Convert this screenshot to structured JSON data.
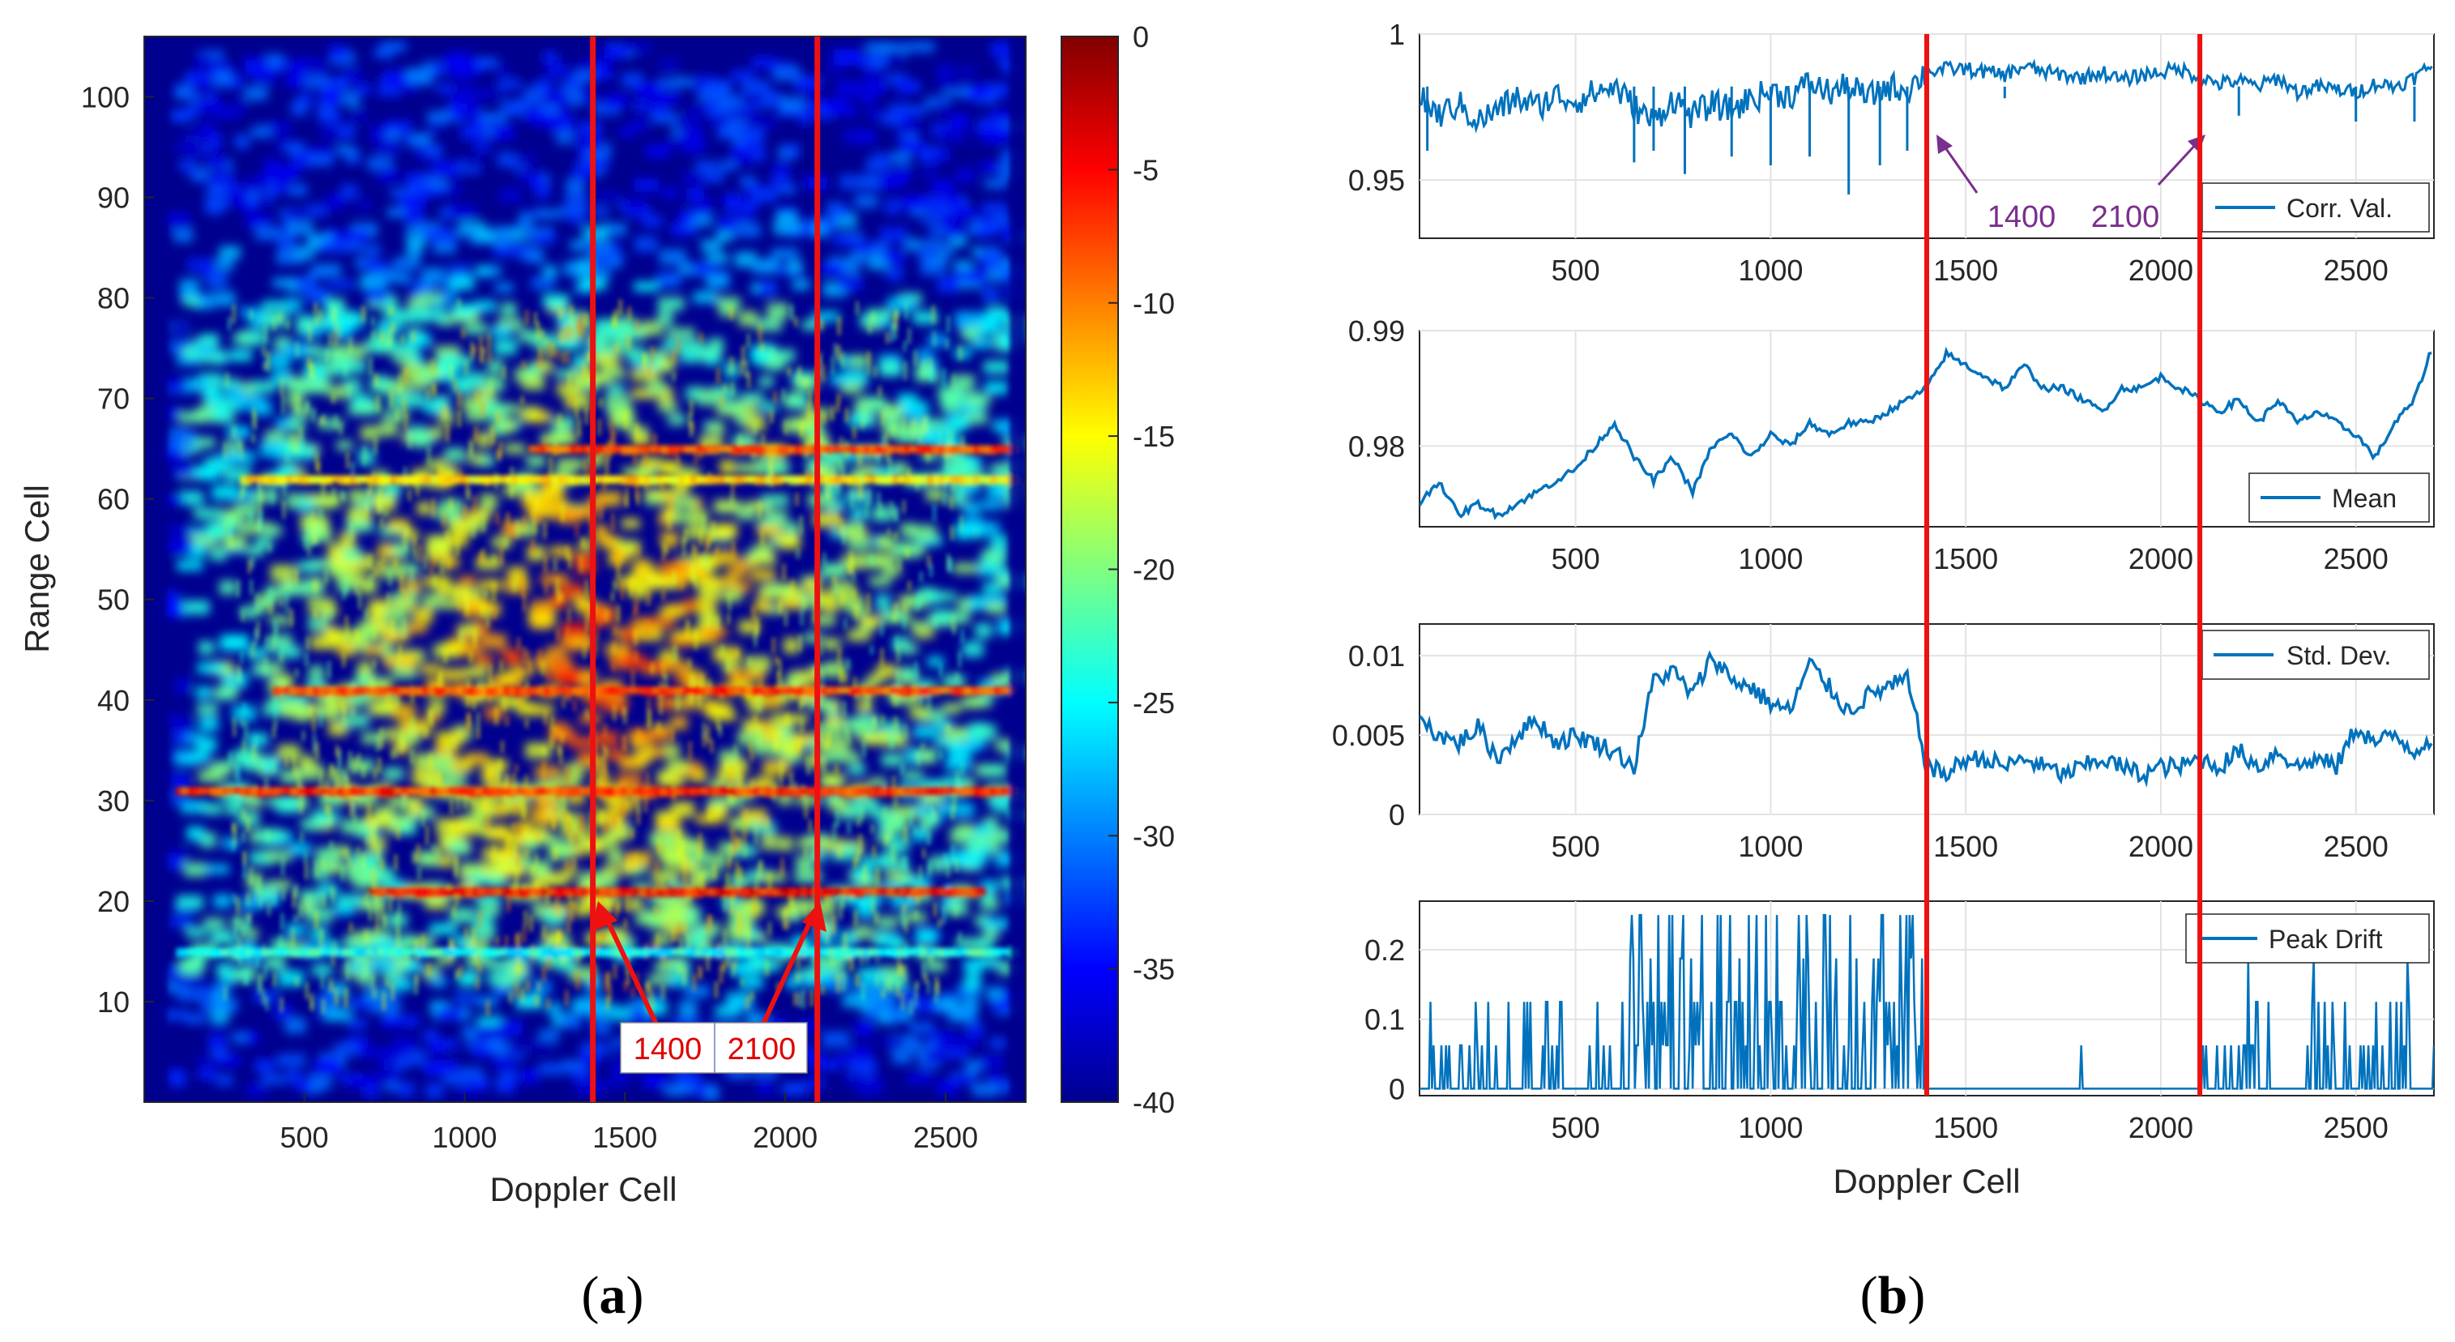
{
  "chart_data": [
    {
      "panel": "a",
      "type": "heatmap",
      "caption": {
        "open": "(",
        "letter": "a",
        "close": ")"
      },
      "xlabel": "Doppler Cell",
      "ylabel": "Range Cell",
      "xlim": [
        1,
        2750
      ],
      "ylim": [
        0,
        106
      ],
      "xticks": [
        "500",
        "1000",
        "1500",
        "2000",
        "2500"
      ],
      "yticks": [
        "10",
        "20",
        "30",
        "40",
        "50",
        "60",
        "70",
        "80",
        "90",
        "100"
      ],
      "colorbar": {
        "colormap": "jet",
        "range": [
          -40,
          0
        ],
        "ticks": [
          "0",
          "-5",
          "-10",
          "-15",
          "-20",
          "-25",
          "-30",
          "-35",
          "-40"
        ]
      },
      "vlines": [
        1400,
        2100
      ],
      "annotations": [
        "1400",
        "2100"
      ],
      "description_bands": [
        {
          "range_cell": 65,
          "from": 1200,
          "to": 2700,
          "level": -8
        },
        {
          "range_cell": 62,
          "from": 300,
          "to": 2700,
          "level": -14
        },
        {
          "range_cell": 41,
          "from": 400,
          "to": 2700,
          "level": -8
        },
        {
          "range_cell": 31,
          "from": 100,
          "to": 2700,
          "level": -7
        },
        {
          "range_cell": 21,
          "from": 700,
          "to": 2600,
          "level": -6
        },
        {
          "range_cell": 15,
          "from": 100,
          "to": 2700,
          "level": -24
        }
      ]
    },
    {
      "panel": "b",
      "type": "line",
      "caption": {
        "open": "(",
        "letter": "b",
        "close": ")"
      },
      "xlabel": "Doppler Cell",
      "xlim": [
        100,
        2700
      ],
      "xticks": [
        "500",
        "1000",
        "1500",
        "2000",
        "2500"
      ],
      "vlines": [
        1400,
        2100
      ],
      "series_color": "#0072bd",
      "vline_color": "#ee1111",
      "subplots": [
        {
          "name": "Corr. Val.",
          "ylim": [
            0.93,
            1.0
          ],
          "yticks": [
            "1",
            "0.95"
          ],
          "annotations": [
            "1400",
            "2100"
          ],
          "x": [
            100,
            150,
            200,
            250,
            300,
            350,
            400,
            450,
            500,
            550,
            600,
            650,
            700,
            750,
            800,
            850,
            900,
            950,
            1000,
            1050,
            1100,
            1150,
            1200,
            1250,
            1300,
            1350,
            1400,
            1450,
            1500,
            1550,
            1600,
            1650,
            1700,
            1750,
            1800,
            1850,
            1900,
            1950,
            2000,
            2050,
            2100,
            2150,
            2200,
            2250,
            2300,
            2350,
            2400,
            2450,
            2500,
            2550,
            2600,
            2650,
            2700
          ],
          "values": [
            0.978,
            0.972,
            0.976,
            0.97,
            0.974,
            0.978,
            0.975,
            0.979,
            0.977,
            0.98,
            0.982,
            0.975,
            0.97,
            0.978,
            0.972,
            0.976,
            0.974,
            0.978,
            0.98,
            0.979,
            0.983,
            0.98,
            0.982,
            0.978,
            0.982,
            0.981,
            0.987,
            0.988,
            0.988,
            0.987,
            0.986,
            0.989,
            0.987,
            0.986,
            0.985,
            0.987,
            0.984,
            0.986,
            0.987,
            0.988,
            0.985,
            0.983,
            0.984,
            0.982,
            0.985,
            0.98,
            0.982,
            0.981,
            0.98,
            0.983,
            0.982,
            0.985,
            0.99
          ],
          "dips": [
            [
              120,
              0.96
            ],
            [
              650,
              0.956
            ],
            [
              700,
              0.96
            ],
            [
              780,
              0.952
            ],
            [
              900,
              0.958
            ],
            [
              1000,
              0.955
            ],
            [
              1100,
              0.958
            ],
            [
              1200,
              0.945
            ],
            [
              1280,
              0.955
            ],
            [
              1350,
              0.96
            ],
            [
              1600,
              0.978
            ],
            [
              2200,
              0.972
            ],
            [
              2500,
              0.97
            ],
            [
              2650,
              0.97
            ]
          ]
        },
        {
          "name": "Mean",
          "ylim": [
            0.973,
            0.99
          ],
          "yticks": [
            "0.99",
            "0.98"
          ],
          "x": [
            100,
            150,
            200,
            250,
            300,
            350,
            400,
            450,
            500,
            550,
            600,
            650,
            700,
            750,
            800,
            850,
            900,
            950,
            1000,
            1050,
            1100,
            1150,
            1200,
            1250,
            1300,
            1350,
            1400,
            1450,
            1500,
            1550,
            1600,
            1650,
            1700,
            1750,
            1800,
            1850,
            1900,
            1950,
            2000,
            2050,
            2100,
            2150,
            2200,
            2250,
            2300,
            2350,
            2400,
            2450,
            2500,
            2550,
            2600,
            2650,
            2700
          ],
          "values": [
            0.975,
            0.977,
            0.974,
            0.975,
            0.974,
            0.975,
            0.976,
            0.977,
            0.978,
            0.98,
            0.982,
            0.979,
            0.977,
            0.979,
            0.976,
            0.98,
            0.981,
            0.979,
            0.981,
            0.98,
            0.982,
            0.981,
            0.982,
            0.982,
            0.983,
            0.984,
            0.985,
            0.988,
            0.987,
            0.986,
            0.985,
            0.987,
            0.985,
            0.985,
            0.984,
            0.983,
            0.985,
            0.985,
            0.986,
            0.985,
            0.984,
            0.983,
            0.984,
            0.982,
            0.984,
            0.982,
            0.983,
            0.982,
            0.981,
            0.979,
            0.982,
            0.984,
            0.989
          ]
        },
        {
          "name": "Std. Dev.",
          "ylim": [
            0,
            0.012
          ],
          "yticks": [
            "0.01",
            "0.005",
            "0"
          ],
          "x": [
            100,
            150,
            200,
            250,
            300,
            350,
            400,
            450,
            500,
            550,
            600,
            650,
            700,
            750,
            800,
            850,
            900,
            950,
            1000,
            1050,
            1100,
            1150,
            1200,
            1250,
            1300,
            1350,
            1400,
            1450,
            1500,
            1550,
            1600,
            1650,
            1700,
            1750,
            1800,
            1850,
            1900,
            1950,
            2000,
            2050,
            2100,
            2150,
            2200,
            2250,
            2300,
            2350,
            2400,
            2450,
            2500,
            2550,
            2600,
            2650,
            2700
          ],
          "values": [
            0.006,
            0.005,
            0.0045,
            0.0055,
            0.0035,
            0.005,
            0.006,
            0.0045,
            0.005,
            0.0045,
            0.004,
            0.003,
            0.0085,
            0.009,
            0.0075,
            0.01,
            0.0085,
            0.008,
            0.007,
            0.0065,
            0.0095,
            0.008,
            0.0065,
            0.0075,
            0.008,
            0.0085,
            0.003,
            0.0025,
            0.0035,
            0.0035,
            0.003,
            0.0035,
            0.003,
            0.0025,
            0.003,
            0.0035,
            0.003,
            0.0025,
            0.003,
            0.003,
            0.0035,
            0.003,
            0.004,
            0.003,
            0.004,
            0.003,
            0.0035,
            0.003,
            0.0055,
            0.0045,
            0.005,
            0.004,
            0.005
          ]
        },
        {
          "name": "Peak Drift",
          "ylim": [
            -0.01,
            0.27
          ],
          "yticks": [
            "0.2",
            "0.1",
            "0"
          ],
          "note": "binary spikes; high activity 640-1380 (up to 0.25), near zero 1400-2100"
        }
      ]
    }
  ]
}
